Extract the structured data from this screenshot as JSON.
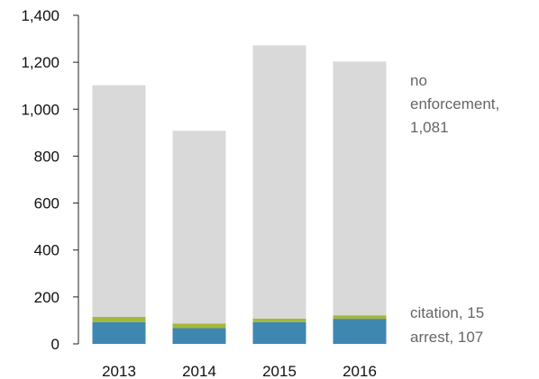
{
  "chart_data": {
    "type": "bar",
    "stacked": true,
    "categories": [
      "2013",
      "2014",
      "2015",
      "2016"
    ],
    "series": [
      {
        "name": "arrest",
        "values": [
          93,
          67,
          93,
          107
        ],
        "color": "#3e87b1"
      },
      {
        "name": "citation",
        "values": [
          22,
          20,
          15,
          15
        ],
        "color": "#a4b73a"
      },
      {
        "name": "no enforcement",
        "values": [
          987,
          821,
          1164,
          1081
        ],
        "color": "#d9d9d9"
      }
    ],
    "ylim": [
      0,
      1400
    ],
    "yticks": [
      0,
      200,
      400,
      600,
      800,
      1000,
      1200,
      1400
    ],
    "ytick_labels": [
      "0",
      "200",
      "400",
      "600",
      "800",
      "1,000",
      "1,200",
      "1,400"
    ],
    "grid": false,
    "legend": {
      "placement": "right, beside last bar",
      "entries": [
        {
          "series": "no enforcement",
          "lines": [
            "no",
            "enforcement,",
            "1,081"
          ]
        },
        {
          "series": "citation",
          "lines": [
            "citation, 15"
          ]
        },
        {
          "series": "arrest",
          "lines": [
            "arrest, 107"
          ]
        }
      ]
    }
  }
}
